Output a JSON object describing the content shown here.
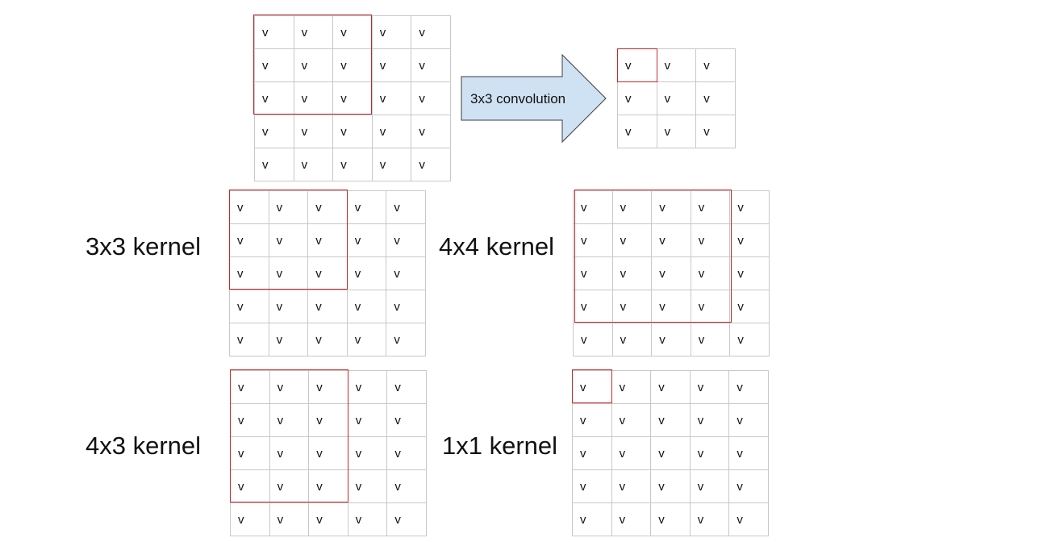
{
  "cell_value": "v",
  "arrow_label": "3x3 convolution",
  "labels": {
    "k3x3": "3x3 kernel",
    "k4x4": "4x4 kernel",
    "k4x3": "4x3 kernel",
    "k1x1": "1x1 kernel"
  },
  "grids": {
    "top_input": {
      "rows": 5,
      "cols": 5
    },
    "top_output": {
      "rows": 3,
      "cols": 3
    },
    "k3x3": {
      "rows": 5,
      "cols": 5
    },
    "k4x4": {
      "rows": 5,
      "cols": 5
    },
    "k4x3": {
      "rows": 5,
      "cols": 5
    },
    "k1x1": {
      "rows": 5,
      "cols": 5
    }
  },
  "kernels": {
    "top_input": {
      "rows": 3,
      "cols": 3
    },
    "top_output": {
      "rows": 1,
      "cols": 1
    },
    "k3x3": {
      "rows": 3,
      "cols": 3
    },
    "k4x4": {
      "rows": 4,
      "cols": 4
    },
    "k4x3": {
      "rows": 4,
      "cols": 3
    },
    "k1x1": {
      "rows": 1,
      "cols": 1
    }
  },
  "colors": {
    "kernel_border": "#c62828",
    "grid_line": "#c8c8c8",
    "arrow_fill": "#cfe2f3",
    "arrow_stroke": "#3c3c3c"
  }
}
